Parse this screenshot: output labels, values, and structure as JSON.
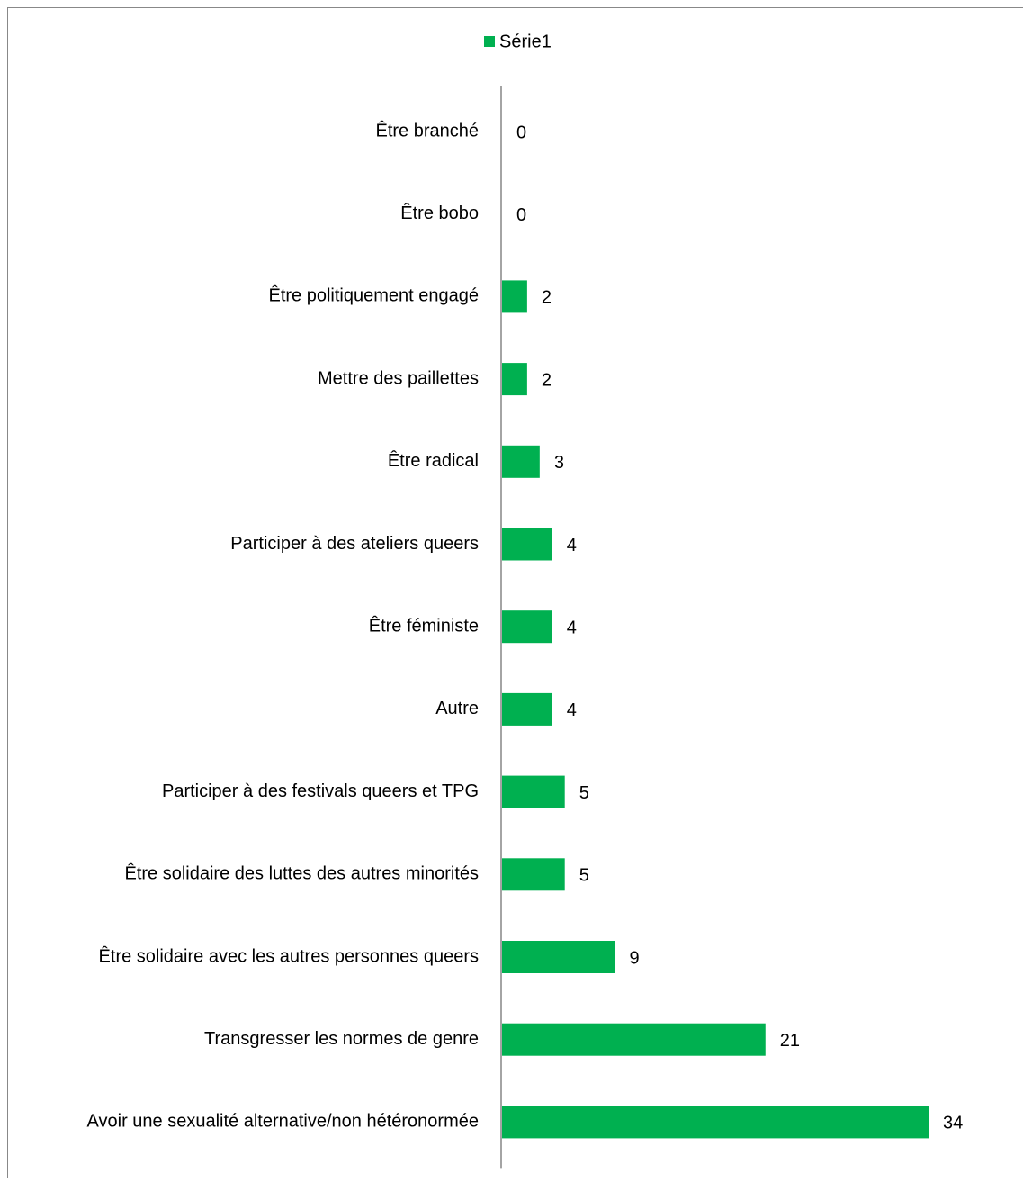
{
  "chart_data": {
    "type": "barh",
    "categories": [
      "Être branché",
      "Être bobo",
      "Être politiquement engagé",
      "Mettre des paillettes",
      "Être radical",
      "Participer à des ateliers queers",
      "Être féministe",
      "Autre",
      "Participer à des festivals queers et TPG",
      "Être solidaire des luttes des autres minorités",
      "Être solidaire avec les autres personnes queers",
      "Transgresser les normes de genre",
      "Avoir une sexualité alternative/non hétéronormée"
    ],
    "series": [
      {
        "name": "Série1",
        "color": "#00b050",
        "values": [
          0,
          0,
          2,
          2,
          3,
          4,
          4,
          4,
          5,
          5,
          9,
          21,
          34
        ]
      }
    ],
    "legend": "top"
  }
}
